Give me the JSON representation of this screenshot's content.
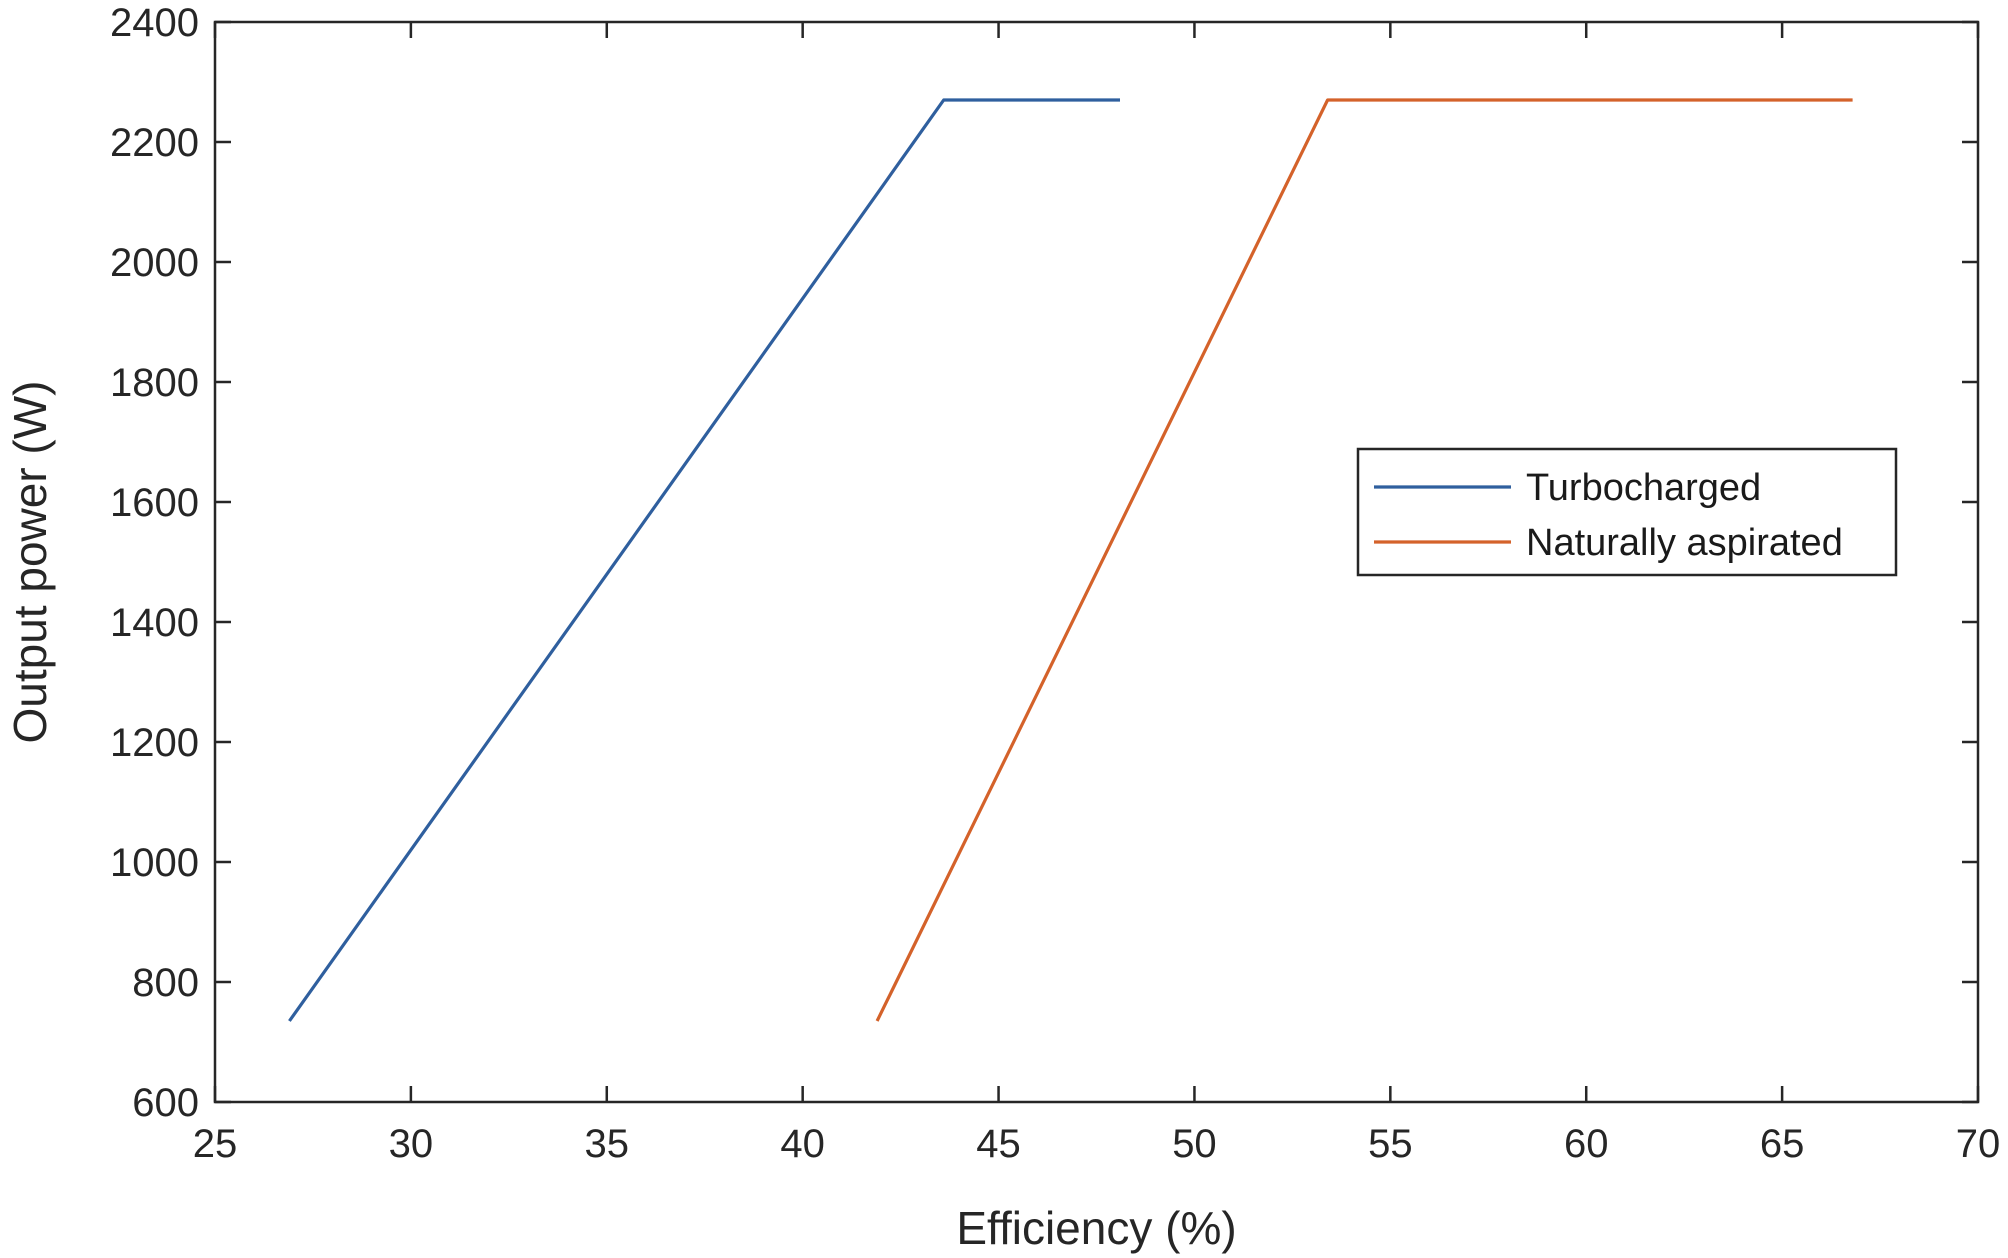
{
  "chart_data": {
    "type": "line",
    "title": "",
    "xlabel": "Efficiency (%)",
    "ylabel": "Output power (W)",
    "xlim": [
      25,
      70
    ],
    "ylim": [
      600,
      2400
    ],
    "xticks": [
      25,
      30,
      35,
      40,
      45,
      50,
      55,
      60,
      65,
      70
    ],
    "yticks": [
      600,
      800,
      1000,
      1200,
      1400,
      1600,
      1800,
      2000,
      2200,
      2400
    ],
    "grid": false,
    "legend_position": "center-right",
    "series": [
      {
        "name": "Turbocharged",
        "color": "#2f5f9e",
        "points": [
          [
            26.9,
            735
          ],
          [
            43.6,
            2270
          ],
          [
            48.1,
            2270
          ]
        ]
      },
      {
        "name": "Naturally aspirated",
        "color": "#d4622a",
        "points": [
          [
            41.9,
            735
          ],
          [
            53.4,
            2270
          ],
          [
            66.8,
            2270
          ]
        ]
      }
    ]
  }
}
